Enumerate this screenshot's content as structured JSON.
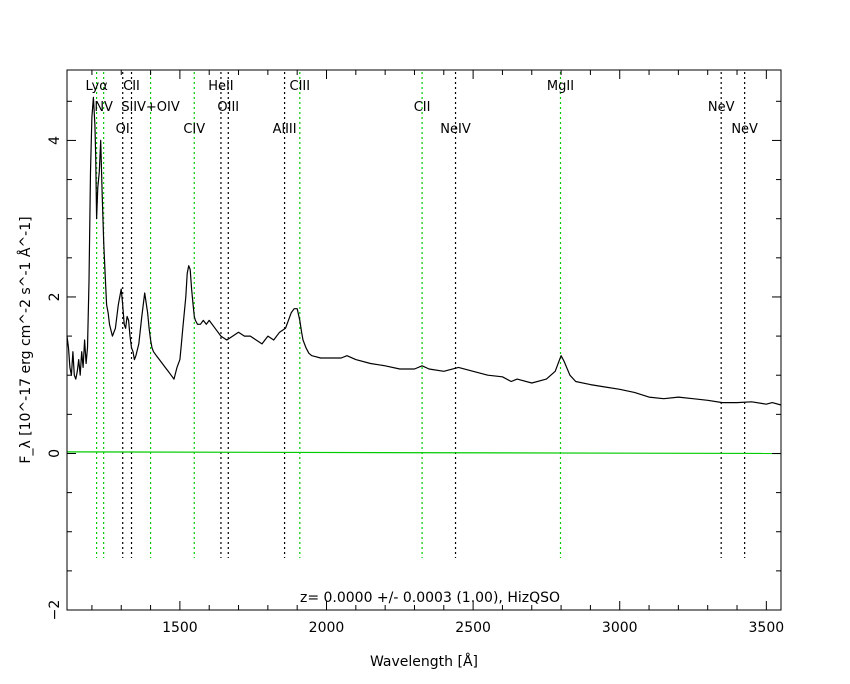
{
  "chart_data": {
    "type": "line",
    "title": "",
    "xlabel": "Wavelength [Å]",
    "ylabel": "F_λ [10^-17 erg cm^-2 s^-1 Å^-1]",
    "xlim": [
      1115,
      3550
    ],
    "ylim": [
      -2.0,
      4.9
    ],
    "x_ticks": [
      1500,
      2000,
      2500,
      3000,
      3500
    ],
    "y_ticks": [
      -2,
      0,
      2,
      4
    ],
    "annotation": "z= 0.0000 +/- 0.0003 (1.00), HizQSO",
    "colors": {
      "spectrum": "#000000",
      "model": "#00cc00",
      "emission_line": "#00cc00",
      "absorption_line": "#000000",
      "axes": "#000000"
    },
    "series": [
      {
        "id": "spectrum",
        "x": [
          1115,
          1120,
          1125,
          1130,
          1135,
          1140,
          1145,
          1150,
          1155,
          1160,
          1165,
          1170,
          1175,
          1180,
          1185,
          1190,
          1195,
          1200,
          1205,
          1210,
          1213,
          1216,
          1220,
          1225,
          1230,
          1235,
          1240,
          1245,
          1250,
          1255,
          1260,
          1270,
          1280,
          1290,
          1300,
          1305,
          1310,
          1315,
          1320,
          1325,
          1330,
          1335,
          1340,
          1345,
          1350,
          1360,
          1370,
          1380,
          1390,
          1395,
          1400,
          1405,
          1410,
          1420,
          1430,
          1440,
          1450,
          1460,
          1470,
          1480,
          1490,
          1500,
          1505,
          1510,
          1515,
          1520,
          1525,
          1530,
          1535,
          1540,
          1545,
          1549,
          1553,
          1560,
          1570,
          1580,
          1590,
          1600,
          1620,
          1640,
          1660,
          1680,
          1700,
          1720,
          1740,
          1760,
          1780,
          1800,
          1820,
          1840,
          1860,
          1870,
          1880,
          1890,
          1900,
          1909,
          1915,
          1920,
          1930,
          1940,
          1950,
          1960,
          1980,
          2000,
          2050,
          2070,
          2100,
          2150,
          2200,
          2250,
          2300,
          2326,
          2350,
          2400,
          2450,
          2500,
          2550,
          2600,
          2630,
          2650,
          2700,
          2750,
          2780,
          2795,
          2800,
          2810,
          2830,
          2850,
          2900,
          2950,
          3000,
          3050,
          3100,
          3150,
          3200,
          3250,
          3300,
          3350,
          3400,
          3450,
          3500,
          3520,
          3550
        ],
        "y": [
          1.5,
          1.35,
          1.1,
          1.0,
          1.3,
          1.0,
          0.95,
          1.05,
          1.2,
          1.0,
          1.3,
          1.1,
          1.45,
          1.15,
          1.35,
          2.2,
          3.6,
          4.3,
          4.55,
          4.2,
          3.8,
          3.0,
          3.4,
          3.6,
          4.0,
          3.3,
          2.7,
          2.3,
          1.9,
          1.8,
          1.65,
          1.5,
          1.6,
          1.9,
          2.1,
          1.9,
          1.65,
          1.6,
          1.75,
          1.7,
          1.5,
          1.35,
          1.3,
          1.2,
          1.25,
          1.4,
          1.75,
          2.05,
          1.8,
          1.6,
          1.45,
          1.35,
          1.3,
          1.25,
          1.2,
          1.15,
          1.1,
          1.05,
          1.0,
          0.95,
          1.1,
          1.2,
          1.4,
          1.6,
          1.8,
          2.0,
          2.3,
          2.4,
          2.35,
          2.1,
          1.9,
          1.75,
          1.7,
          1.65,
          1.65,
          1.7,
          1.65,
          1.7,
          1.6,
          1.5,
          1.45,
          1.5,
          1.55,
          1.5,
          1.5,
          1.45,
          1.4,
          1.5,
          1.45,
          1.55,
          1.6,
          1.7,
          1.8,
          1.85,
          1.85,
          1.7,
          1.55,
          1.45,
          1.35,
          1.28,
          1.25,
          1.24,
          1.22,
          1.22,
          1.22,
          1.25,
          1.2,
          1.15,
          1.12,
          1.08,
          1.08,
          1.12,
          1.08,
          1.05,
          1.1,
          1.05,
          1.0,
          0.98,
          0.92,
          0.95,
          0.9,
          0.95,
          1.05,
          1.2,
          1.25,
          1.18,
          1.0,
          0.92,
          0.88,
          0.85,
          0.82,
          0.78,
          0.72,
          0.7,
          0.72,
          0.7,
          0.68,
          0.65,
          0.65,
          0.66,
          0.63,
          0.65,
          0.62
        ]
      },
      {
        "id": "model",
        "x": [
          1115,
          3550
        ],
        "y": [
          0.02,
          0.0
        ]
      }
    ],
    "line_markers": [
      {
        "label": "Lyα",
        "x": 1216,
        "row": 1,
        "style": "emission"
      },
      {
        "label": "NV",
        "x": 1240,
        "row": 2,
        "style": "emission"
      },
      {
        "label": "OI",
        "x": 1305,
        "row": 3,
        "style": "absorption"
      },
      {
        "label": "CII",
        "x": 1335,
        "row": 1,
        "style": "absorption"
      },
      {
        "label": "SiIV+OIV",
        "x": 1400,
        "row": 2,
        "style": "emission"
      },
      {
        "label": "CIV",
        "x": 1549,
        "row": 3,
        "style": "emission"
      },
      {
        "label": "HeII",
        "x": 1640,
        "row": 1,
        "style": "absorption"
      },
      {
        "label": "OIII",
        "x": 1665,
        "row": 2,
        "style": "absorption"
      },
      {
        "label": "AlIII",
        "x": 1857,
        "row": 3,
        "style": "absorption"
      },
      {
        "label": "CIII",
        "x": 1909,
        "row": 1,
        "style": "emission"
      },
      {
        "label": "CII",
        "x": 2326,
        "row": 2,
        "style": "emission"
      },
      {
        "label": "NeIV",
        "x": 2440,
        "row": 3,
        "style": "absorption"
      },
      {
        "label": "MgII",
        "x": 2798,
        "row": 1,
        "style": "emission"
      },
      {
        "label": "NeV",
        "x": 3346,
        "row": 2,
        "style": "absorption"
      },
      {
        "label": "NeV",
        "x": 3426,
        "row": 3,
        "style": "absorption"
      }
    ]
  }
}
